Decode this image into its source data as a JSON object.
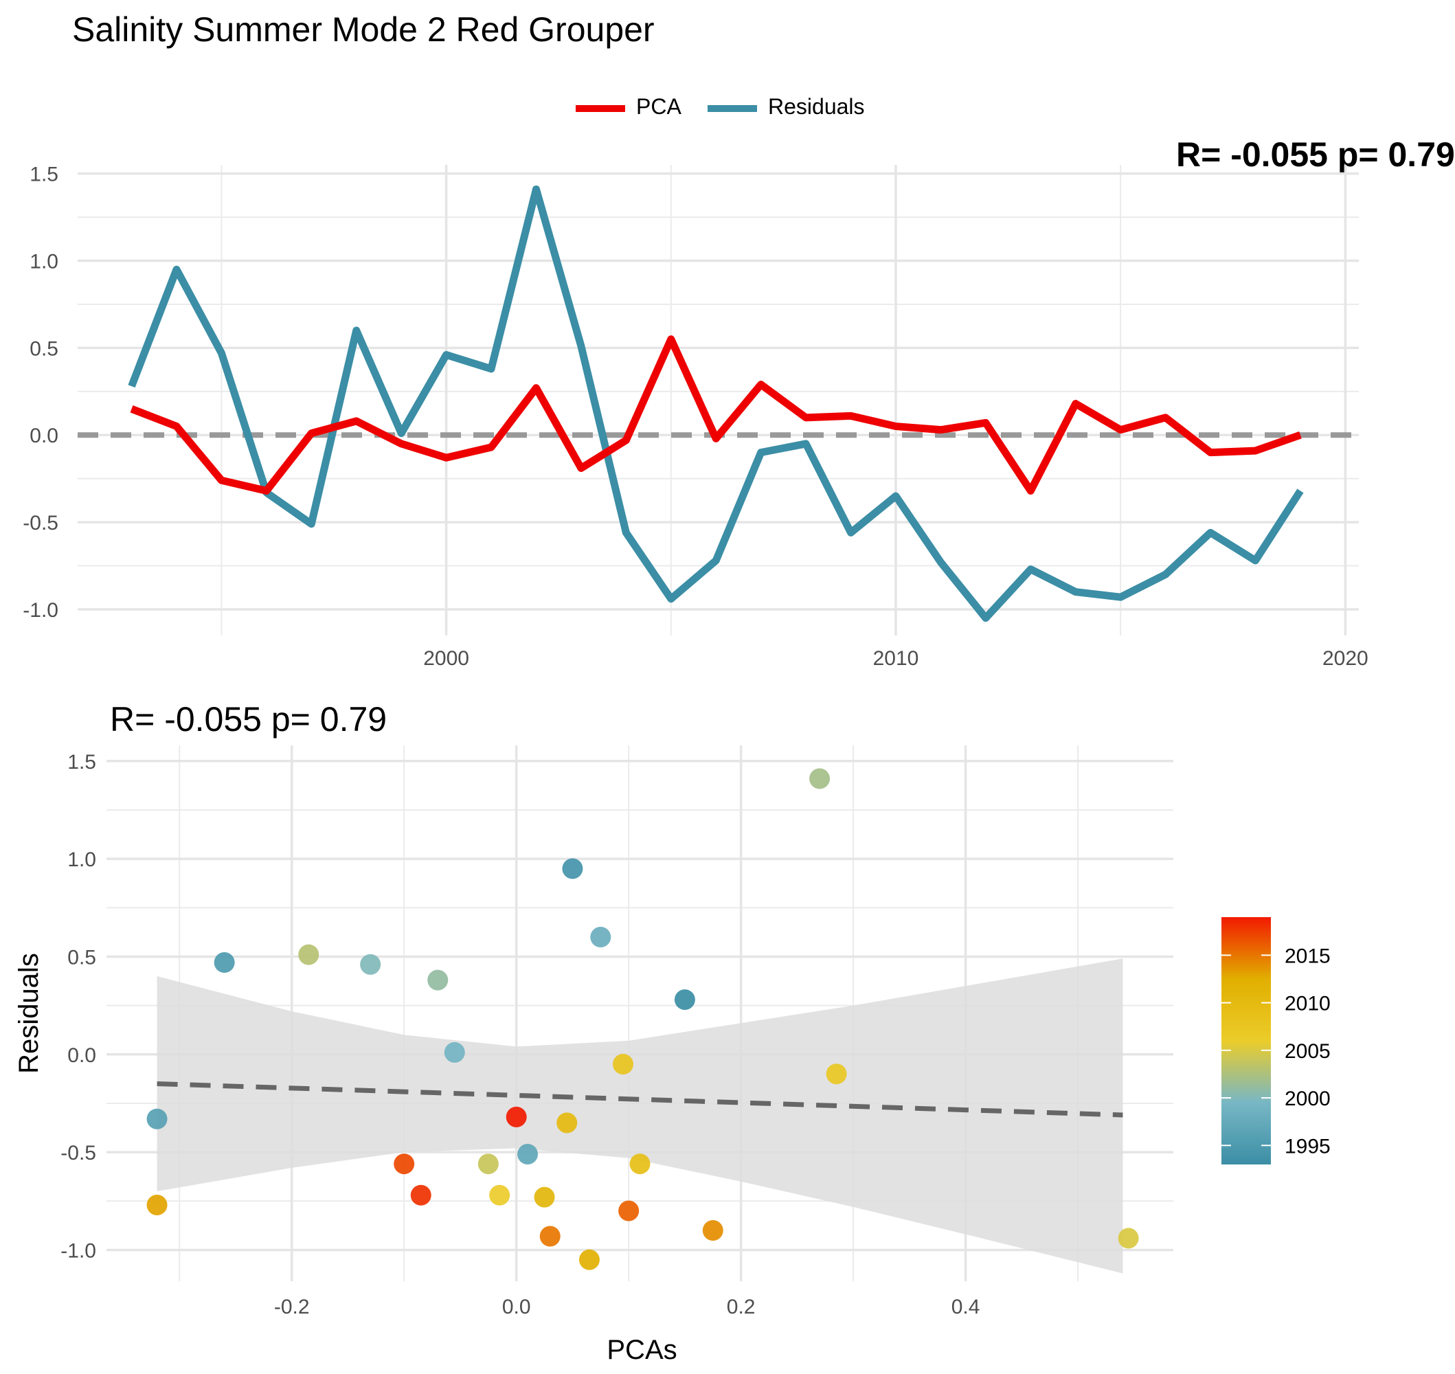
{
  "title": "Salinity Summer Mode 2 Red Grouper",
  "legend": {
    "items": [
      {
        "label": "PCA",
        "color": "#EE0000"
      },
      {
        "label": "Residuals",
        "color": "#3B8EA5"
      }
    ]
  },
  "top_cut_annotation": "R= -0.055  p= 0.79",
  "bottom_annotation": "R= -0.055  p= 0.79",
  "chart_data": [
    {
      "type": "line",
      "x": [
        1993,
        1994,
        1995,
        1996,
        1997,
        1998,
        1999,
        2000,
        2001,
        2002,
        2003,
        2004,
        2005,
        2006,
        2007,
        2008,
        2009,
        2010,
        2011,
        2012,
        2013,
        2014,
        2015,
        2016,
        2017,
        2018,
        2019
      ],
      "series": [
        {
          "name": "PCA",
          "color": "#EE0000",
          "values": [
            0.15,
            0.05,
            -0.26,
            -0.32,
            0.01,
            0.08,
            -0.05,
            -0.13,
            -0.07,
            0.27,
            -0.19,
            -0.03,
            0.55,
            -0.02,
            0.29,
            0.1,
            0.11,
            0.05,
            0.03,
            0.07,
            -0.32,
            0.18,
            0.03,
            0.1,
            -0.1,
            -0.09,
            0.0
          ]
        },
        {
          "name": "Residuals",
          "color": "#3B8EA5",
          "values": [
            0.28,
            0.95,
            0.47,
            -0.33,
            -0.51,
            0.6,
            0.01,
            0.46,
            0.38,
            1.41,
            0.51,
            -0.56,
            -0.94,
            -0.72,
            -0.1,
            -0.05,
            -0.56,
            -0.35,
            -0.73,
            -1.05,
            -0.77,
            -0.9,
            -0.93,
            -0.8,
            -0.56,
            -0.72,
            -0.32
          ]
        }
      ],
      "reference_line": {
        "y": 0,
        "style": "dashed",
        "color": "#999999"
      },
      "xticks": [
        2000,
        2010,
        2020
      ],
      "yticks": [
        -1.0,
        -0.5,
        0.0,
        0.5,
        1.0,
        1.5
      ],
      "xtick_labels": [
        "2000",
        "2010",
        "2020"
      ],
      "ytick_labels": [
        "-1.0",
        "-0.5",
        "0.0",
        "0.5",
        "1.0",
        "1.5"
      ],
      "xlim": [
        1991.8,
        2020.3
      ],
      "ylim": [
        -1.15,
        1.55
      ],
      "grid": true,
      "legend_position": "top"
    },
    {
      "type": "scatter",
      "xlabel": "PCAs",
      "ylabel": "Residuals",
      "points": [
        {
          "x": 0.15,
          "y": 0.28,
          "year": 1993
        },
        {
          "x": 0.05,
          "y": 0.95,
          "year": 1994
        },
        {
          "x": -0.26,
          "y": 0.47,
          "year": 1995
        },
        {
          "x": -0.32,
          "y": -0.33,
          "year": 1996
        },
        {
          "x": 0.01,
          "y": -0.51,
          "year": 1997
        },
        {
          "x": 0.075,
          "y": 0.6,
          "year": 1998
        },
        {
          "x": -0.055,
          "y": 0.01,
          "year": 1999
        },
        {
          "x": -0.13,
          "y": 0.46,
          "year": 2000
        },
        {
          "x": -0.07,
          "y": 0.38,
          "year": 2001
        },
        {
          "x": 0.27,
          "y": 1.41,
          "year": 2002
        },
        {
          "x": -0.185,
          "y": 0.51,
          "year": 2003
        },
        {
          "x": -0.025,
          "y": -0.56,
          "year": 2004
        },
        {
          "x": 0.545,
          "y": -0.94,
          "year": 2005
        },
        {
          "x": -0.015,
          "y": -0.72,
          "year": 2006
        },
        {
          "x": 0.285,
          "y": -0.1,
          "year": 2007
        },
        {
          "x": 0.095,
          "y": -0.05,
          "year": 2008
        },
        {
          "x": 0.11,
          "y": -0.56,
          "year": 2009
        },
        {
          "x": 0.045,
          "y": -0.35,
          "year": 2010
        },
        {
          "x": 0.025,
          "y": -0.73,
          "year": 2011
        },
        {
          "x": 0.065,
          "y": -1.05,
          "year": 2012
        },
        {
          "x": -0.32,
          "y": -0.77,
          "year": 2013
        },
        {
          "x": 0.175,
          "y": -0.9,
          "year": 2014
        },
        {
          "x": 0.03,
          "y": -0.93,
          "year": 2015
        },
        {
          "x": 0.1,
          "y": -0.8,
          "year": 2016
        },
        {
          "x": -0.1,
          "y": -0.56,
          "year": 2017
        },
        {
          "x": -0.085,
          "y": -0.72,
          "year": 2018
        },
        {
          "x": 0.0,
          "y": -0.32,
          "year": 2019
        }
      ],
      "trend_line": {
        "x": [
          -0.32,
          0.54
        ],
        "y": [
          -0.15,
          -0.31
        ],
        "style": "dashed",
        "color": "#666666"
      },
      "confidence_band": {
        "x": [
          -0.32,
          -0.2,
          -0.1,
          0.0,
          0.1,
          0.2,
          0.3,
          0.4,
          0.54
        ],
        "upper": [
          0.4,
          0.22,
          0.1,
          0.04,
          0.07,
          0.16,
          0.25,
          0.35,
          0.49
        ],
        "lower": [
          -0.7,
          -0.58,
          -0.5,
          -0.48,
          -0.53,
          -0.65,
          -0.78,
          -0.92,
          -1.12
        ],
        "color": "#DDDDDD"
      },
      "xticks": [
        -0.2,
        0.0,
        0.2,
        0.4
      ],
      "yticks": [
        -1.0,
        -0.5,
        0.0,
        0.5,
        1.0,
        1.5
      ],
      "xtick_labels": [
        "-0.2",
        "0.0",
        "0.2",
        "0.4"
      ],
      "ytick_labels": [
        "-1.0",
        "-0.5",
        "0.0",
        "0.5",
        "1.0",
        "1.5"
      ],
      "xlim": [
        -0.365,
        0.585
      ],
      "ylim": [
        -1.16,
        1.58
      ],
      "grid": true,
      "colorbar": {
        "ticks": [
          1995,
          2000,
          2005,
          2010,
          2015
        ],
        "tick_labels": [
          "1995",
          "2000",
          "2005",
          "2010",
          "2015"
        ],
        "range": [
          1993,
          2019
        ],
        "colors": [
          "#3B8EA5",
          "#78B7C5",
          "#EBCC2A",
          "#E1AF00",
          "#F21A00"
        ],
        "position": "right"
      }
    }
  ]
}
